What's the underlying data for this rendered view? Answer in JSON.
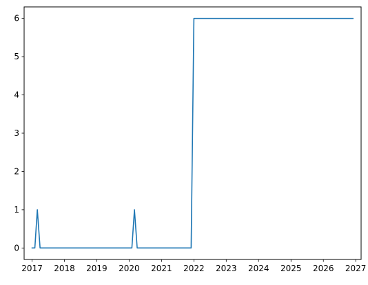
{
  "chart_data": {
    "type": "line",
    "title": "",
    "xlabel": "",
    "ylabel": "",
    "xlim": [
      "2016-10-03",
      "2027-03-03"
    ],
    "ylim": [
      -0.3,
      6.3
    ],
    "grid": false,
    "legend": "none",
    "xticks": [
      "2017",
      "2018",
      "2019",
      "2020",
      "2021",
      "2022",
      "2023",
      "2024",
      "2025",
      "2026",
      "2027"
    ],
    "yticks": [
      "0",
      "1",
      "2",
      "3",
      "4",
      "5",
      "6"
    ],
    "series": [
      {
        "color": "#1f77b4",
        "points": [
          {
            "x": "2017-01-01",
            "y": 0
          },
          {
            "x": "2017-02-01",
            "y": 0
          },
          {
            "x": "2017-03-01",
            "y": 1
          },
          {
            "x": "2017-04-01",
            "y": 0
          },
          {
            "x": "2020-02-01",
            "y": 0
          },
          {
            "x": "2020-03-01",
            "y": 1
          },
          {
            "x": "2020-04-01",
            "y": 0
          },
          {
            "x": "2021-12-01",
            "y": 0
          },
          {
            "x": "2022-01-01",
            "y": 6
          },
          {
            "x": "2026-12-01",
            "y": 6
          }
        ]
      }
    ]
  }
}
